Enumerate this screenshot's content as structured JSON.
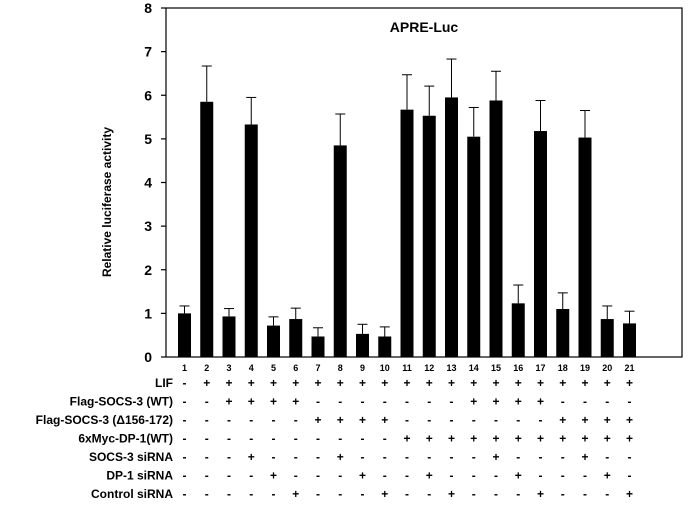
{
  "chart_data": {
    "type": "bar",
    "title": "APRE-Luc",
    "ylabel": "Relative luciferase activity",
    "xlabel": "",
    "ylim": [
      0,
      8
    ],
    "yticks": [
      "0",
      "1",
      "2",
      "3",
      "4",
      "5",
      "6",
      "7",
      "8"
    ],
    "categories": [
      "1",
      "2",
      "3",
      "4",
      "5",
      "6",
      "7",
      "8",
      "9",
      "10",
      "11",
      "12",
      "13",
      "14",
      "15",
      "16",
      "17",
      "18",
      "19",
      "20",
      "21"
    ],
    "values": [
      1.0,
      5.85,
      0.93,
      5.33,
      0.72,
      0.87,
      0.47,
      4.85,
      0.53,
      0.47,
      5.67,
      5.53,
      5.95,
      5.05,
      5.88,
      1.23,
      5.18,
      1.1,
      5.03,
      0.87,
      0.77
    ],
    "errors": [
      0.17,
      0.82,
      0.18,
      0.62,
      0.2,
      0.25,
      0.2,
      0.72,
      0.22,
      0.22,
      0.8,
      0.68,
      0.88,
      0.67,
      0.67,
      0.42,
      0.7,
      0.37,
      0.62,
      0.3,
      0.28
    ],
    "bar_color": "#000000",
    "grid": false
  },
  "conditions": [
    {
      "label": "LIF",
      "marks": [
        "-",
        "+",
        "+",
        "+",
        "+",
        "+",
        "+",
        "+",
        "+",
        "+",
        "+",
        "+",
        "+",
        "+",
        "+",
        "+",
        "+",
        "+",
        "+",
        "+",
        "+"
      ]
    },
    {
      "label": "Flag-SOCS-3 (WT)",
      "marks": [
        "-",
        "-",
        "+",
        "+",
        "+",
        "+",
        "-",
        "-",
        "-",
        "-",
        "-",
        "-",
        "-",
        "+",
        "+",
        "+",
        "+",
        "-",
        "-",
        "-",
        "-"
      ]
    },
    {
      "label": "Flag-SOCS-3 (Δ156-172)",
      "marks": [
        "-",
        "-",
        "-",
        "-",
        "-",
        "-",
        "+",
        "+",
        "+",
        "+",
        "-",
        "-",
        "-",
        "-",
        "-",
        "-",
        "-",
        "+",
        "+",
        "+",
        "+"
      ]
    },
    {
      "label": "6xMyc-DP-1(WT)",
      "marks": [
        "-",
        "-",
        "-",
        "-",
        "-",
        "-",
        "-",
        "-",
        "-",
        "-",
        "+",
        "+",
        "+",
        "+",
        "+",
        "+",
        "+",
        "+",
        "+",
        "+",
        "+"
      ]
    },
    {
      "label": "SOCS-3 siRNA",
      "marks": [
        "-",
        "-",
        "-",
        "+",
        "-",
        "-",
        "-",
        "+",
        "-",
        "-",
        "-",
        "-",
        "-",
        "-",
        "+",
        "-",
        "-",
        "-",
        "+",
        "-",
        "-"
      ]
    },
    {
      "label": "DP-1 siRNA",
      "marks": [
        "-",
        "-",
        "-",
        "-",
        "+",
        "-",
        "-",
        "-",
        "+",
        "-",
        "-",
        "+",
        "-",
        "-",
        "-",
        "+",
        "-",
        "-",
        "-",
        "+",
        "-"
      ]
    },
    {
      "label": "Control siRNA",
      "marks": [
        "-",
        "-",
        "-",
        "-",
        "-",
        "+",
        "-",
        "-",
        "-",
        "+",
        "-",
        "-",
        "+",
        "-",
        "-",
        "-",
        "+",
        "-",
        "-",
        "-",
        "+"
      ]
    }
  ]
}
